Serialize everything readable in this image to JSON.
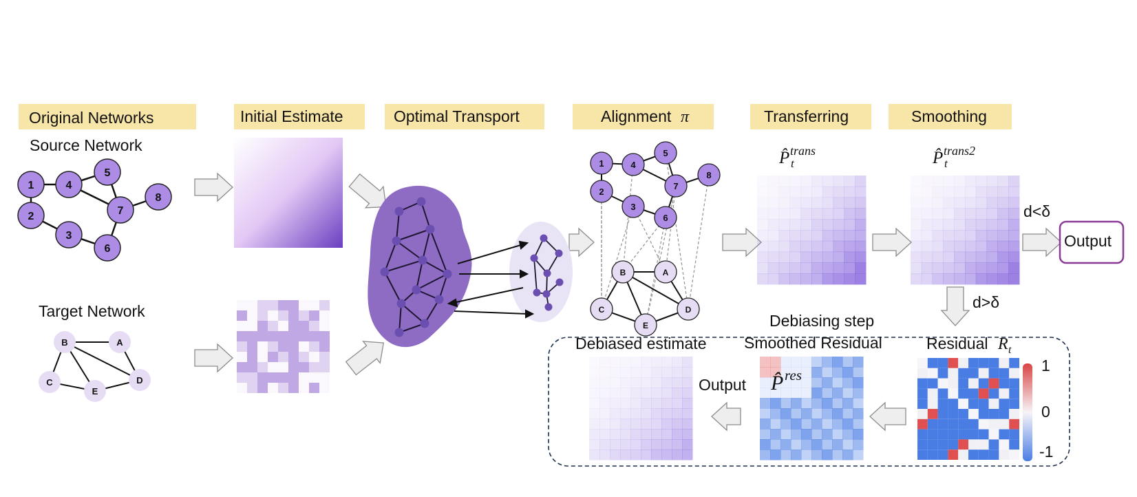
{
  "headers": {
    "original_networks": "Original Networks",
    "initial_estimate": "Initial Estimate",
    "optimal_transport": "Optimal Transport",
    "alignment": "Alignment",
    "alignment_symbol": "π",
    "transferring": "Transferring",
    "smoothing": "Smoothing"
  },
  "labels": {
    "source_network": "Source Network",
    "target_network": "Target Network",
    "p_hat": "P̂",
    "sub_t": "t",
    "sup_trans": "trans",
    "sup_trans2": "trans2",
    "d_less": "d<δ",
    "d_greater": "d>δ",
    "output": "Output",
    "debiasing_step": "Debiasing step",
    "smoothed_residual": "Smoothed Residual",
    "debiased_estimate": "Debiased estimate",
    "residual": "Residual",
    "residual_symbol": "R",
    "sup_res": "res",
    "output_small": "Output"
  },
  "colorbar": {
    "max_label": "1",
    "mid_label": "0",
    "min_label": "-1"
  },
  "source_nodes": [
    "1",
    "2",
    "3",
    "4",
    "5",
    "6",
    "7",
    "8"
  ],
  "target_nodes": [
    "B",
    "A",
    "C",
    "E",
    "D"
  ],
  "colors": {
    "header_bg": "#f8e5a8",
    "node_fill": "#ad8ce6",
    "target_node_fill": "#e6ddf5",
    "ot_blob": "#8f6cc4",
    "ot_small": "#e8e4f6",
    "ot_node": "#6a4eb0",
    "output_border": "#8a3a96",
    "neg": "#4a7de4",
    "pos": "#e05050"
  }
}
